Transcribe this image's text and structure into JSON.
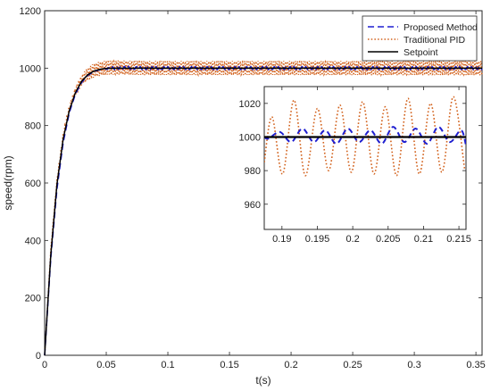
{
  "chart_data": [
    {
      "type": "line",
      "xlabel": "t(s)",
      "ylabel": "speed(rpm)",
      "xlim": [
        0,
        0.355
      ],
      "ylim": [
        0,
        1200
      ],
      "xticks": [
        0,
        0.05,
        0.1,
        0.15,
        0.2,
        0.25,
        0.3,
        0.35
      ],
      "xtick_labels": [
        "0",
        "0.05",
        "0.1",
        "0.15",
        "0.2",
        "0.25",
        "0.3",
        "0.35"
      ],
      "yticks": [
        0,
        200,
        400,
        600,
        800,
        1000,
        1200
      ],
      "ytick_labels": [
        "0",
        "200",
        "400",
        "600",
        "800",
        "1000",
        "1200"
      ],
      "grid": false,
      "legend_position": "top-right",
      "series": [
        {
          "name": "Proposed Method",
          "color": "#1f1fd0",
          "style": "dashed",
          "x": [
            0,
            0.005,
            0.01,
            0.015,
            0.02,
            0.025,
            0.03,
            0.035,
            0.04,
            0.045,
            0.05,
            0.06,
            0.08,
            0.1,
            0.15,
            0.2,
            0.25,
            0.3,
            0.355
          ],
          "y": [
            0,
            340,
            580,
            740,
            845,
            910,
            950,
            975,
            988,
            995,
            998,
            1001,
            1000,
            1000,
            1000,
            1000,
            1000,
            1000,
            1000
          ]
        },
        {
          "name": "Traditional PID",
          "color": "#d2601a",
          "style": "dotted",
          "x": [
            0,
            0.005,
            0.01,
            0.015,
            0.02,
            0.025,
            0.03,
            0.035,
            0.04,
            0.045,
            0.05,
            0.06,
            0.08,
            0.1,
            0.15,
            0.2,
            0.25,
            0.3,
            0.355
          ],
          "y": [
            0,
            370,
            610,
            765,
            860,
            920,
            958,
            980,
            992,
            998,
            1001,
            1002,
            1000,
            1000,
            1000,
            1000,
            1000,
            1000,
            1000
          ],
          "oscillation_amplitude": 25
        },
        {
          "name": "Setpoint",
          "color": "#000000",
          "style": "solid",
          "x": [
            0,
            0.005,
            0.01,
            0.015,
            0.02,
            0.025,
            0.03,
            0.035,
            0.04,
            0.045,
            0.05,
            0.06,
            0.08,
            0.1,
            0.15,
            0.2,
            0.25,
            0.3,
            0.355
          ],
          "y": [
            0,
            350,
            595,
            752,
            852,
            915,
            954,
            977,
            990,
            996,
            999,
            1000,
            1000,
            1000,
            1000,
            1000,
            1000,
            1000,
            1000
          ]
        }
      ]
    },
    {
      "type": "line",
      "xlim": [
        0.1875,
        0.216
      ],
      "ylim": [
        945,
        1030
      ],
      "xticks": [
        0.19,
        0.195,
        0.2,
        0.205,
        0.21,
        0.215
      ],
      "xtick_labels": [
        "0.19",
        "0.195",
        "0.2",
        "0.205",
        "0.21",
        "0.215"
      ],
      "yticks": [
        960,
        980,
        1000,
        1020
      ],
      "ytick_labels": [
        "960",
        "980",
        "1000",
        "1020"
      ],
      "series": [
        {
          "name": "Traditional PID",
          "color": "#d2601a",
          "style": "dotted",
          "x": [
            0.1875,
            0.1886,
            0.1901,
            0.1917,
            0.1933,
            0.195,
            0.1966,
            0.1982,
            0.1998,
            0.2014,
            0.203,
            0.2046,
            0.2062,
            0.2078,
            0.2094,
            0.211,
            0.2126,
            0.2142,
            0.2158
          ],
          "y": [
            985,
            1012,
            978,
            1022,
            977,
            1017,
            980,
            1019,
            979,
            1021,
            978,
            1018,
            977,
            1023,
            978,
            1020,
            979,
            1024,
            981
          ]
        },
        {
          "name": "Proposed Method",
          "color": "#1f1fd0",
          "style": "dashed",
          "x": [
            0.1875,
            0.1881,
            0.1897,
            0.1913,
            0.1929,
            0.1945,
            0.1961,
            0.1977,
            0.1993,
            0.2009,
            0.2025,
            0.2041,
            0.2057,
            0.2073,
            0.2089,
            0.2105,
            0.2121,
            0.2137,
            0.2153,
            0.216
          ],
          "y": [
            1000,
            999,
            1003,
            997,
            1005,
            997,
            1004,
            996,
            1005,
            997,
            1004,
            996,
            1006,
            997,
            1005,
            996,
            1006,
            997,
            1004,
            995
          ]
        },
        {
          "name": "Setpoint",
          "color": "#000000",
          "style": "solid",
          "x": [
            0.1875,
            0.216
          ],
          "y": [
            1000,
            1000
          ]
        }
      ]
    }
  ]
}
